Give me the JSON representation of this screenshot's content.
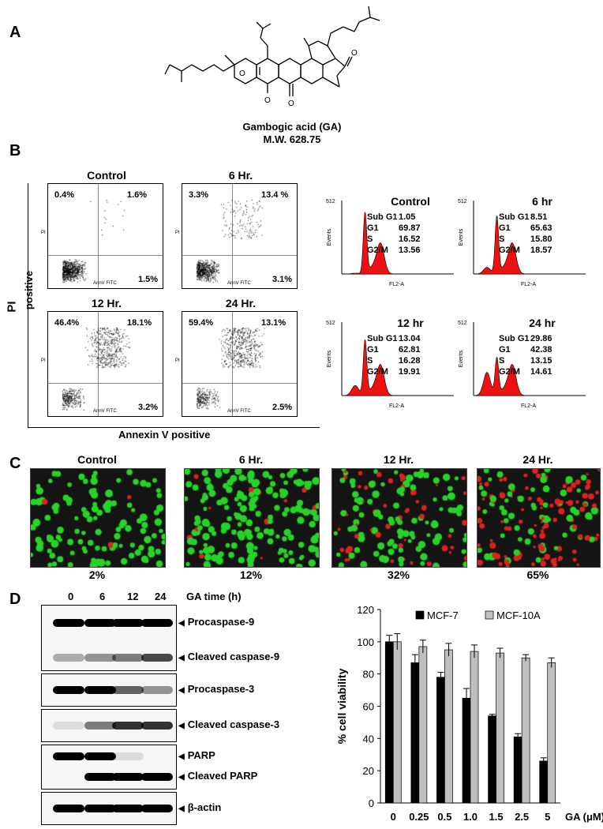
{
  "panels": {
    "A": {
      "label": "A",
      "compound": {
        "name": "Gambogic acid (GA)",
        "mw": "M.W. 628.75"
      },
      "atoms": [
        "O",
        "O",
        "O",
        "O"
      ]
    },
    "B": {
      "label": "B",
      "y_axis_label_pi": "PI",
      "y_axis_label_pos": "positive",
      "x_axis_label": "Annexin V  positive",
      "annexin_axis_tick": "AnnV FITC",
      "pi_axis_tick": "PI",
      "flow_plots": [
        {
          "title": "Control",
          "ul": "0.4%",
          "ur": "1.6%",
          "lr": "1.5%"
        },
        {
          "title": "6 Hr.",
          "ul": "3.3%",
          "ur": "13.4 %",
          "lr": "3.1%"
        },
        {
          "title": "12 Hr.",
          "ul": "46.4%",
          "ur": "18.1%",
          "lr": "3.2%"
        },
        {
          "title": "24 Hr.",
          "ul": "59.4%",
          "ur": "13.1%",
          "lr": "2.5%"
        }
      ],
      "cell_cycle": [
        {
          "title": "Control",
          "ymax": "512",
          "ylabel": "Events",
          "xlabel": "FL2-A",
          "subg1": "1.05",
          "g1": "69.87",
          "s": "16.52",
          "g2m": "13.56"
        },
        {
          "title": "6 hr",
          "ymax": "512",
          "ylabel": "Events",
          "xlabel": "FL2-A",
          "subg1": "8.51",
          "g1": "65.63",
          "s": "15.80",
          "g2m": "18.57"
        },
        {
          "title": "12 hr",
          "ymax": "512",
          "ylabel": "Events",
          "xlabel": "FL2-A",
          "subg1": "13.04",
          "g1": "62.81",
          "s": "16.28",
          "g2m": "19.91"
        },
        {
          "title": "24 hr",
          "ymax": "512",
          "ylabel": "Events",
          "xlabel": "FL2-A",
          "subg1": "29.86",
          "g1": "42.38",
          "s": "13.15",
          "g2m": "14.61"
        }
      ],
      "phase_keys": {
        "subg1": "Sub G1",
        "g1": "G1",
        "s": "S",
        "g2m": "G2/M"
      }
    },
    "C": {
      "label": "C",
      "images": [
        {
          "title": "Control",
          "pct": "2%",
          "red_fraction": 0.02
        },
        {
          "title": "6 Hr.",
          "pct": "12%",
          "red_fraction": 0.12
        },
        {
          "title": "12 Hr.",
          "pct": "32%",
          "red_fraction": 0.32
        },
        {
          "title": "24 Hr.",
          "pct": "65%",
          "red_fraction": 0.65
        }
      ],
      "colors": {
        "live": "#27d327",
        "dead": "#e02020",
        "bg": "#141414"
      }
    },
    "D": {
      "label": "D",
      "time_labels": [
        "0",
        "6",
        "12",
        "24"
      ],
      "time_caption": "GA time (h)",
      "blots": [
        {
          "label1": "Procaspase-9",
          "label2": "Cleaved caspase-9"
        },
        {
          "label1": "Procaspase-3"
        },
        {
          "label1": "Cleaved caspase-3"
        },
        {
          "label1": "PARP",
          "label2": "Cleaved PARP"
        },
        {
          "label1": "β-actin"
        }
      ]
    }
  },
  "chart_data": {
    "type": "bar",
    "categories": [
      "0",
      "0.25",
      "0.5",
      "1.0",
      "1.5",
      "2.5",
      "5"
    ],
    "series": [
      {
        "name": "MCF-7",
        "values": [
          100,
          87,
          78,
          65,
          54,
          41,
          26
        ],
        "errors": [
          4,
          5,
          3,
          6,
          1,
          2,
          2
        ],
        "color": "#000000"
      },
      {
        "name": "MCF-10A",
        "values": [
          100,
          97,
          95,
          94,
          93,
          90,
          87
        ],
        "errors": [
          5,
          4,
          4,
          4,
          3,
          2,
          3
        ],
        "color": "#bfbfbf"
      }
    ],
    "xlabel": "GA (μM)",
    "ylabel": "% cell viability",
    "ylim": [
      0,
      120
    ],
    "yticks": [
      "0",
      "20",
      "40",
      "60",
      "80",
      "100",
      "120"
    ],
    "legend": "top"
  }
}
